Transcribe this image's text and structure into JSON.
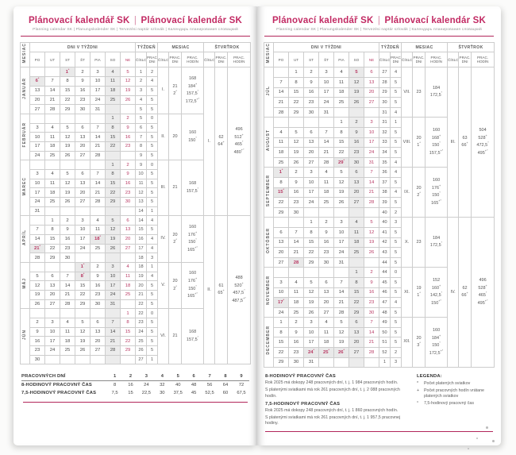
{
  "header": {
    "title_left": "Plánovací kalendář SK",
    "sep": "|",
    "title_right": "Plánovací kalendár SK",
    "subtitle": "Planning calendar SK | Planungskalender SK | Tervezési naptár szlovák | Календарь планирования словацкий"
  },
  "table_headers": {
    "mesiac_side": "MESIAC",
    "dni": "DNI V TÝŽDNI",
    "tyzden": "TÝŽDEŇ",
    "mesiac": "MESIAC",
    "stvrtrok": "ŠTVRŤROK",
    "days": [
      "PO",
      "UT",
      "ST",
      "ŠT",
      "PIA",
      "SO",
      "NE"
    ],
    "cislo": "ČÍSLO",
    "prac_dni": "PRAC. DNI",
    "prac_hodin": "PRAC. HODÍN"
  },
  "pages": [
    {
      "months": [
        {
          "name": "JANUÁR",
          "num": "I.",
          "days": [
            "21",
            "2*"
          ],
          "hours": [
            "168",
            "184+",
            "157,5°",
            "172,5+°"
          ],
          "rows": [
            [
              "",
              "",
              "1*",
              "2",
              "3",
              "4",
              "5",
              "1",
              "2"
            ],
            [
              "6*",
              "7",
              "8",
              "9",
              "10",
              "11",
              "12",
              "2",
              "4"
            ],
            [
              "13",
              "14",
              "15",
              "16",
              "17",
              "18",
              "19",
              "3",
              "5"
            ],
            [
              "20",
              "21",
              "22",
              "23",
              "24",
              "25",
              "26",
              "4",
              "5"
            ],
            [
              "27",
              "28",
              "29",
              "30",
              "31",
              "",
              "",
              "5",
              "5"
            ]
          ]
        },
        {
          "name": "FEBRUÁR",
          "num": "II.",
          "days": [
            "20"
          ],
          "hours": [
            "160",
            "150°"
          ],
          "rows": [
            [
              "",
              "",
              "",
              "",
              "",
              "1",
              "2",
              "5",
              "0"
            ],
            [
              "3",
              "4",
              "5",
              "6",
              "7",
              "8",
              "9",
              "6",
              "5"
            ],
            [
              "10",
              "11",
              "12",
              "13",
              "14",
              "15",
              "16",
              "7",
              "5"
            ],
            [
              "17",
              "18",
              "19",
              "20",
              "21",
              "22",
              "23",
              "8",
              "5"
            ],
            [
              "24",
              "25",
              "26",
              "27",
              "28",
              "",
              "",
              "9",
              "5"
            ]
          ]
        },
        {
          "name": "MAREC",
          "num": "III.",
          "days": [
            "21"
          ],
          "hours": [
            "168",
            "157,5°"
          ],
          "rows": [
            [
              "",
              "",
              "",
              "",
              "",
              "1",
              "2",
              "9",
              "0"
            ],
            [
              "3",
              "4",
              "5",
              "6",
              "7",
              "8",
              "9",
              "10",
              "5"
            ],
            [
              "10",
              "11",
              "12",
              "13",
              "14",
              "15",
              "16",
              "11",
              "5"
            ],
            [
              "17",
              "18",
              "19",
              "20",
              "21",
              "22",
              "23",
              "12",
              "5"
            ],
            [
              "24",
              "25",
              "26",
              "27",
              "28",
              "29",
              "30",
              "13",
              "5"
            ],
            [
              "31",
              "",
              "",
              "",
              "",
              "",
              "",
              "14",
              "1"
            ]
          ]
        },
        {
          "name": "APRÍL",
          "num": "IV.",
          "days": [
            "20",
            "2*"
          ],
          "hours": [
            "160",
            "176+",
            "150°",
            "165+°"
          ],
          "rows": [
            [
              "",
              "1",
              "2",
              "3",
              "4",
              "5",
              "6",
              "14",
              "4"
            ],
            [
              "7",
              "8",
              "9",
              "10",
              "11",
              "12",
              "13",
              "15",
              "5"
            ],
            [
              "14",
              "15",
              "16",
              "17",
              "18*",
              "19",
              "20",
              "16",
              "4"
            ],
            [
              "21*",
              "22",
              "23",
              "24",
              "25",
              "26",
              "27",
              "17",
              "4"
            ],
            [
              "28",
              "29",
              "30",
              "",
              "",
              "",
              "",
              "18",
              "3"
            ]
          ]
        },
        {
          "name": "MÁJ",
          "num": "V.",
          "days": [
            "20",
            "2*"
          ],
          "hours": [
            "160",
            "176+",
            "150°",
            "165+°"
          ],
          "rows": [
            [
              "",
              "",
              "",
              "1*",
              "2",
              "3",
              "4",
              "18",
              "1"
            ],
            [
              "5",
              "6",
              "7",
              "8*",
              "9",
              "10",
              "11",
              "19",
              "4"
            ],
            [
              "12",
              "13",
              "14",
              "15",
              "16",
              "17",
              "18",
              "20",
              "5"
            ],
            [
              "19",
              "20",
              "21",
              "22",
              "23",
              "24",
              "25",
              "21",
              "5"
            ],
            [
              "26",
              "27",
              "28",
              "29",
              "30",
              "31",
              "",
              "22",
              "5"
            ]
          ]
        },
        {
          "name": "JÚN",
          "num": "VI.",
          "days": [
            "21"
          ],
          "hours": [
            "168",
            "157,5°"
          ],
          "rows": [
            [
              "",
              "",
              "",
              "",
              "",
              "",
              "1",
              "22",
              "0"
            ],
            [
              "2",
              "3",
              "4",
              "5",
              "6",
              "7",
              "8",
              "23",
              "5"
            ],
            [
              "9",
              "10",
              "11",
              "12",
              "13",
              "14",
              "15",
              "24",
              "5"
            ],
            [
              "16",
              "17",
              "18",
              "19",
              "20",
              "21",
              "22",
              "25",
              "5"
            ],
            [
              "23",
              "24",
              "25",
              "26",
              "27",
              "28",
              "29",
              "26",
              "5"
            ],
            [
              "30",
              "",
              "",
              "",
              "",
              "",
              "",
              "27",
              "1"
            ]
          ]
        }
      ],
      "quarters": [
        {
          "num": "I.",
          "days": [
            "62",
            "64+"
          ],
          "hours": [
            "496",
            "512+",
            "465°",
            "480+°"
          ],
          "months": [
            0,
            1,
            2
          ]
        },
        {
          "num": "II.",
          "days": [
            "61",
            "65+"
          ],
          "hours": [
            "488",
            "520+",
            "457,5°",
            "487,5+°"
          ],
          "months": [
            3,
            4,
            5
          ]
        }
      ]
    },
    {
      "months": [
        {
          "name": "JÚL",
          "num": "VII.",
          "days": [
            "23"
          ],
          "hours": [
            "184",
            "172,5°"
          ],
          "rows": [
            [
              "",
              "1",
              "2",
              "3",
              "4",
              "5^",
              "6",
              "27",
              "4"
            ],
            [
              "7",
              "8",
              "9",
              "10",
              "11",
              "12",
              "13",
              "28",
              "5"
            ],
            [
              "14",
              "15",
              "16",
              "17",
              "18",
              "19",
              "20",
              "29",
              "5"
            ],
            [
              "21",
              "22",
              "23",
              "24",
              "25",
              "26",
              "27",
              "30",
              "5"
            ],
            [
              "28",
              "29",
              "30",
              "31",
              "",
              "",
              "",
              "31",
              "4"
            ]
          ]
        },
        {
          "name": "AUGUST",
          "num": "VIII.",
          "days": [
            "20",
            "1*"
          ],
          "hours": [
            "160",
            "168+",
            "150°",
            "157,5+°"
          ],
          "rows": [
            [
              "",
              "",
              "",
              "",
              "1",
              "2",
              "3",
              "31",
              "1"
            ],
            [
              "4",
              "5",
              "6",
              "7",
              "8",
              "9",
              "10",
              "32",
              "5"
            ],
            [
              "11",
              "12",
              "13",
              "14",
              "15",
              "16",
              "17",
              "33",
              "5"
            ],
            [
              "18",
              "19",
              "20",
              "21",
              "22",
              "23",
              "24",
              "34",
              "5"
            ],
            [
              "25",
              "26",
              "27",
              "28",
              "29*",
              "30",
              "31",
              "35",
              "4"
            ]
          ]
        },
        {
          "name": "SEPTEMBER",
          "num": "IX.",
          "days": [
            "20",
            "2*"
          ],
          "hours": [
            "160",
            "176+",
            "150°",
            "165+°"
          ],
          "rows": [
            [
              "1*",
              "2",
              "3",
              "4",
              "5",
              "6",
              "7",
              "36",
              "4"
            ],
            [
              "8",
              "9",
              "10",
              "11",
              "12",
              "13",
              "14",
              "37",
              "5"
            ],
            [
              "15*",
              "16",
              "17",
              "18",
              "19",
              "20",
              "21",
              "38",
              "4"
            ],
            [
              "22",
              "23",
              "24",
              "25",
              "26",
              "27",
              "28",
              "39",
              "5"
            ],
            [
              "29",
              "30",
              "",
              "",
              "",
              "",
              "",
              "40",
              "2"
            ]
          ]
        },
        {
          "name": "OKTÓBER",
          "num": "X.",
          "days": [
            "23"
          ],
          "hours": [
            "184",
            "172,5°"
          ],
          "rows": [
            [
              "",
              "",
              "1",
              "2",
              "3",
              "4",
              "5",
              "40",
              "3"
            ],
            [
              "6",
              "7",
              "8",
              "9",
              "10",
              "11",
              "12",
              "41",
              "5"
            ],
            [
              "13",
              "14",
              "15",
              "16",
              "17",
              "18",
              "19",
              "42",
              "5"
            ],
            [
              "20",
              "21",
              "22",
              "23",
              "24",
              "25",
              "26",
              "43",
              "5"
            ],
            [
              "27",
              "28^",
              "29",
              "30",
              "31",
              "",
              "",
              "44",
              "5"
            ]
          ]
        },
        {
          "name": "NOVEMBER",
          "num": "XI.",
          "days": [
            "19",
            "1*"
          ],
          "hours": [
            "152",
            "160+",
            "142,5°",
            "150+°"
          ],
          "rows": [
            [
              "",
              "",
              "",
              "",
              "",
              "1",
              "2",
              "44",
              "0"
            ],
            [
              "3",
              "4",
              "5",
              "6",
              "7",
              "8",
              "9",
              "45",
              "5"
            ],
            [
              "10",
              "11",
              "12",
              "13",
              "14",
              "15",
              "16",
              "46",
              "5"
            ],
            [
              "17*",
              "18",
              "19",
              "20",
              "21",
              "22",
              "23",
              "47",
              "4"
            ],
            [
              "24",
              "25",
              "26",
              "27",
              "28",
              "29",
              "30",
              "48",
              "5"
            ]
          ]
        },
        {
          "name": "DECEMBER",
          "num": "XII.",
          "days": [
            "20",
            "3*"
          ],
          "hours": [
            "160",
            "184+",
            "150°",
            "172,5+°"
          ],
          "rows": [
            [
              "1",
              "2",
              "3",
              "4",
              "5",
              "6",
              "7",
              "49",
              "5"
            ],
            [
              "8",
              "9",
              "10",
              "11",
              "12",
              "13",
              "14",
              "50",
              "5"
            ],
            [
              "15",
              "16",
              "17",
              "18",
              "19",
              "20",
              "21",
              "51",
              "5"
            ],
            [
              "22",
              "23",
              "24*",
              "25*",
              "26*",
              "27",
              "28",
              "52",
              "2"
            ],
            [
              "29",
              "30",
              "31",
              "",
              "",
              "",
              "",
              "1",
              "3"
            ]
          ]
        }
      ],
      "quarters": [
        {
          "num": "III.",
          "days": [
            "63",
            "66+"
          ],
          "hours": [
            "504",
            "528+",
            "472,5°",
            "495+°"
          ],
          "months": [
            0,
            1,
            2
          ]
        },
        {
          "num": "IV.",
          "days": [
            "62",
            "66+"
          ],
          "hours": [
            "496",
            "528+",
            "465°",
            "495+°"
          ],
          "months": [
            3,
            4,
            5
          ]
        }
      ]
    }
  ],
  "footer_left": {
    "rows": [
      {
        "label": "PRACOVNÝCH DNÍ",
        "values": [
          "1",
          "2",
          "3",
          "4",
          "5",
          "6",
          "7",
          "8",
          "9"
        ]
      },
      {
        "label": "8-HODINOVÝ PRACOVNÝ ČAS",
        "values": [
          "8",
          "16",
          "24",
          "32",
          "40",
          "48",
          "56",
          "64",
          "72"
        ]
      },
      {
        "label": "7,5-HODINOVÝ PRACOVNÝ ČAS",
        "values": [
          "7,5",
          "15",
          "22,5",
          "30",
          "37,5",
          "45",
          "52,5",
          "60",
          "67,5"
        ]
      }
    ]
  },
  "footer_right": {
    "h8_title": "8-HODINOVÝ PRACOVNÝ ČAS",
    "h8_line1": "Rok 2025 má dokopy 248 pracovných dní, t. j. 1 984 pracovných hodín.",
    "h8_line2": "S platenými sviatkami má rok 261 pracovných dní, t. j. 2 088 pracovných hodín.",
    "h75_title": "7,5-HODINOVÝ PRACOVNÝ ČAS",
    "h75_line1": "Rok 2025 má dokopy 248 pracovných dní, t. j. 1 860 pracovných hodín.",
    "h75_line2": "S platenými sviatkami má rok 261 pracovných dní, t. j. 1 957,5 pracovnej hodiny.",
    "legend_title": "LEGENDA:",
    "legend_items": [
      {
        "symbol": "*",
        "text": "Počet platených sviatkov"
      },
      {
        "symbol": "+",
        "text": "Počet pracovných hodín vrátane platených sviatkov"
      },
      {
        "symbol": "°",
        "text": "7,5-hodinový pracovný čas"
      }
    ]
  },
  "colors": {
    "accent_pink": "#c22a63",
    "holiday_text": "#b93a64",
    "weekend_bg": "#ececec"
  }
}
